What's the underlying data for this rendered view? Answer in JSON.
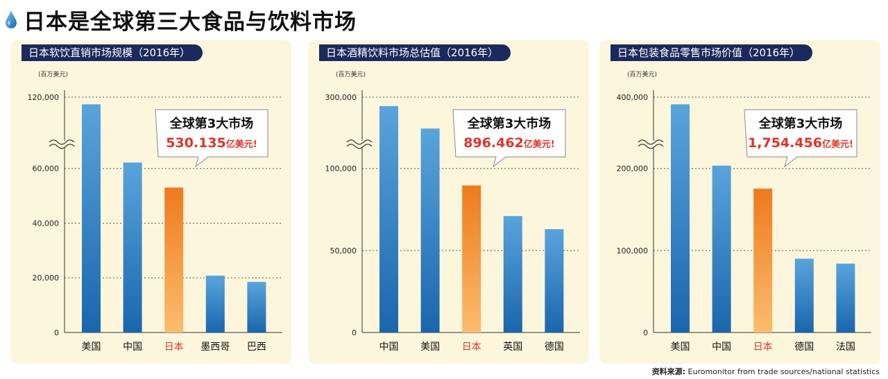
{
  "page": {
    "title": "日本是全球第三大食品与饮料市场",
    "source_label": "资料来源:",
    "source_text": "Euromonitor from trade sources/national statistics",
    "accent": "#f08a2a",
    "bar_blue": "#2a7cc4",
    "header_bg": "#1b2a5c",
    "callout_red": "#e0342a"
  },
  "chart_data": [
    {
      "type": "bar",
      "title": "日本软饮直销市场规模（2016年）",
      "unit": "(百万美元)",
      "categories": [
        "美国",
        "中国",
        "日本",
        "墨西哥",
        "巴西"
      ],
      "values": [
        114000,
        65000,
        53013.5,
        20800,
        18500
      ],
      "highlight": "日本",
      "yticks": [
        0,
        20000,
        40000,
        60000,
        120000
      ],
      "ytick_labels": [
        "0",
        "20,000",
        "40,000",
        "60,000",
        "120,000"
      ],
      "axis_break": true,
      "grid": true,
      "callout": {
        "line1": "全球第3大市场",
        "value": "530.135",
        "suffix": "亿美元!"
      }
    },
    {
      "type": "bar",
      "title": "日本酒精饮料市场总估值（2016年）",
      "unit": "(百万美元)",
      "categories": [
        "中国",
        "美国",
        "日本",
        "英国",
        "德国"
      ],
      "values": [
        275000,
        212000,
        89646.2,
        71000,
        63000
      ],
      "highlight": "日本",
      "yticks": [
        0,
        50000,
        100000,
        300000
      ],
      "ytick_labels": [
        "0",
        "50,000",
        "100,000",
        "300,000"
      ],
      "axis_break": true,
      "grid": true,
      "callout": {
        "line1": "全球第3大市场",
        "value": "896.462",
        "suffix": "亿美元!"
      }
    },
    {
      "type": "bar",
      "title": "日本包装食品零售市场价值（2016年）",
      "unit": "(百万美元)",
      "categories": [
        "美国",
        "中国",
        "日本",
        "德国",
        "法国"
      ],
      "values": [
        380000,
        208000,
        175445.6,
        90000,
        84000
      ],
      "highlight": "日本",
      "yticks": [
        0,
        100000,
        200000,
        400000
      ],
      "ytick_labels": [
        "0",
        "100,000",
        "200,000",
        "400,000"
      ],
      "axis_break": true,
      "grid": true,
      "callout": {
        "line1": "全球第3大市场",
        "value": "1,754.456",
        "suffix": "亿美元!"
      }
    }
  ]
}
